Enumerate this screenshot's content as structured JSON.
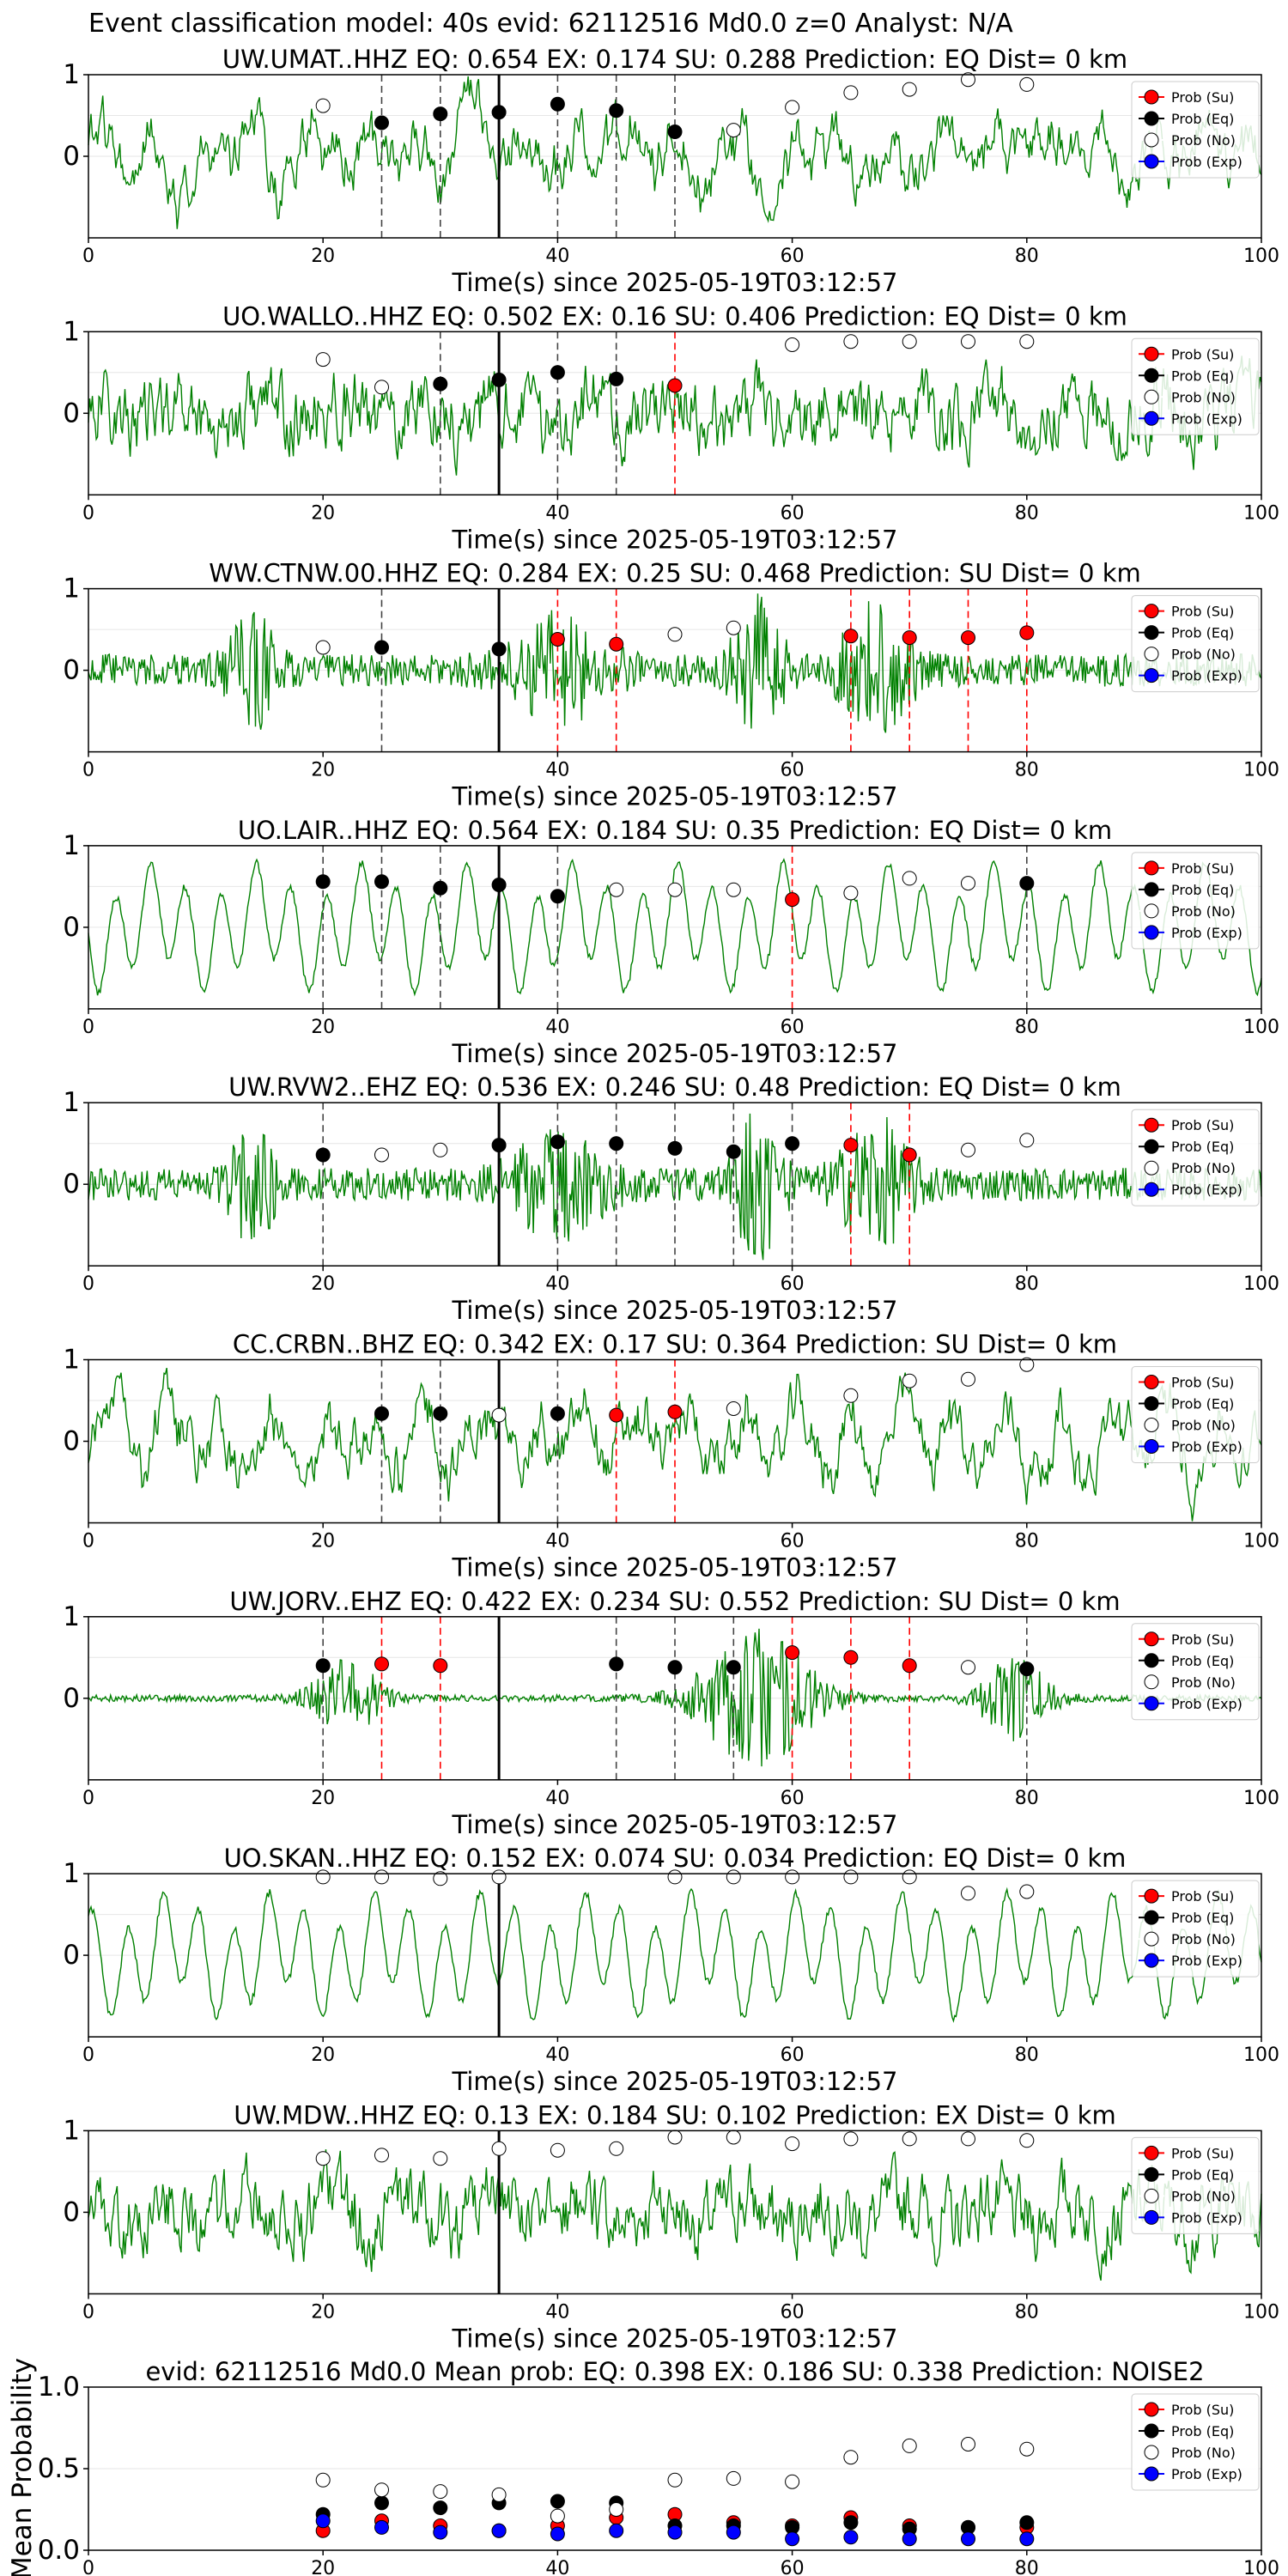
{
  "figure": {
    "title": "Event classification model: 40s evid: 62112516 Md0.0 z=0 Analyst: N/A"
  },
  "colors": {
    "waveform": "#008000",
    "su": "#ff0000",
    "eq": "#000000",
    "no": "#ffffff",
    "exp": "#0000ff",
    "origin_line": "#000000",
    "eq_line": "#444444",
    "su_line": "#ff0000"
  },
  "legend": [
    "Prob (Su)",
    "Prob (Eq)",
    "Prob (No)",
    "Prob (Exp)"
  ],
  "chart_data": [
    {
      "type": "scatter",
      "station": "UW.UMAT..HHZ",
      "title": "UW.UMAT..HHZ   EQ: 0.654  EX: 0.174  SU: 0.288   Prediction: EQ    Dist= 0 km",
      "xlabel": "Time(s) since 2025-05-19T03:12:57",
      "xlim": [
        0,
        100
      ],
      "ylim": [
        -1,
        1
      ],
      "xticks": [
        "0",
        "20",
        "40",
        "60",
        "80",
        "100"
      ],
      "yticks": [
        "1",
        "0"
      ],
      "waveform_style": "noisy-lowfreq",
      "origin_time": 35,
      "points": [
        {
          "x": 20,
          "y": 0.62,
          "cls": "no"
        },
        {
          "x": 25,
          "y": 0.41,
          "cls": "eq"
        },
        {
          "x": 30,
          "y": 0.52,
          "cls": "eq"
        },
        {
          "x": 35,
          "y": 0.54,
          "cls": "eq"
        },
        {
          "x": 40,
          "y": 0.64,
          "cls": "eq"
        },
        {
          "x": 45,
          "y": 0.56,
          "cls": "eq"
        },
        {
          "x": 50,
          "y": 0.3,
          "cls": "eq"
        },
        {
          "x": 55,
          "y": 0.32,
          "cls": "no"
        },
        {
          "x": 60,
          "y": 0.6,
          "cls": "no"
        },
        {
          "x": 65,
          "y": 0.78,
          "cls": "no"
        },
        {
          "x": 70,
          "y": 0.82,
          "cls": "no"
        },
        {
          "x": 75,
          "y": 0.94,
          "cls": "no"
        },
        {
          "x": 80,
          "y": 0.88,
          "cls": "no"
        }
      ]
    },
    {
      "type": "scatter",
      "station": "UO.WALLO..HHZ",
      "title": "UO.WALLO..HHZ   EQ: 0.502  EX: 0.16  SU: 0.406   Prediction: EQ    Dist= 0 km",
      "xlabel": "Time(s) since 2025-05-19T03:12:57",
      "xlim": [
        0,
        100
      ],
      "ylim": [
        -1,
        1
      ],
      "xticks": [
        "0",
        "20",
        "40",
        "60",
        "80",
        "100"
      ],
      "yticks": [
        "1",
        "0"
      ],
      "waveform_style": "noisy",
      "origin_time": 35,
      "points": [
        {
          "x": 20,
          "y": 0.66,
          "cls": "no"
        },
        {
          "x": 25,
          "y": 0.32,
          "cls": "no"
        },
        {
          "x": 30,
          "y": 0.36,
          "cls": "eq"
        },
        {
          "x": 35,
          "y": 0.41,
          "cls": "eq"
        },
        {
          "x": 40,
          "y": 0.5,
          "cls": "eq"
        },
        {
          "x": 45,
          "y": 0.42,
          "cls": "eq"
        },
        {
          "x": 50,
          "y": 0.34,
          "cls": "su"
        },
        {
          "x": 60,
          "y": 0.84,
          "cls": "no"
        },
        {
          "x": 65,
          "y": 0.88,
          "cls": "no"
        },
        {
          "x": 70,
          "y": 0.88,
          "cls": "no"
        },
        {
          "x": 75,
          "y": 0.88,
          "cls": "no"
        },
        {
          "x": 80,
          "y": 0.88,
          "cls": "no"
        }
      ]
    },
    {
      "type": "scatter",
      "station": "WW.CTNW.00.HHZ",
      "title": "WW.CTNW.00.HHZ   EQ: 0.284  EX: 0.25  SU: 0.468   Prediction: SU    Dist= 0 km",
      "xlabel": "Time(s) since 2025-05-19T03:12:57",
      "xlim": [
        0,
        100
      ],
      "ylim": [
        -1,
        1
      ],
      "xticks": [
        "0",
        "20",
        "40",
        "60",
        "80",
        "100"
      ],
      "yticks": [
        "1",
        "0"
      ],
      "waveform_style": "bursty",
      "origin_time": 35,
      "points": [
        {
          "x": 20,
          "y": 0.28,
          "cls": "no"
        },
        {
          "x": 25,
          "y": 0.28,
          "cls": "eq"
        },
        {
          "x": 35,
          "y": 0.26,
          "cls": "eq"
        },
        {
          "x": 40,
          "y": 0.38,
          "cls": "su"
        },
        {
          "x": 45,
          "y": 0.32,
          "cls": "su"
        },
        {
          "x": 50,
          "y": 0.44,
          "cls": "no"
        },
        {
          "x": 55,
          "y": 0.52,
          "cls": "no"
        },
        {
          "x": 65,
          "y": 0.42,
          "cls": "su"
        },
        {
          "x": 70,
          "y": 0.4,
          "cls": "su"
        },
        {
          "x": 75,
          "y": 0.4,
          "cls": "su"
        },
        {
          "x": 80,
          "y": 0.46,
          "cls": "su"
        }
      ]
    },
    {
      "type": "scatter",
      "station": "UO.LAIR..HHZ",
      "title": "UO.LAIR..HHZ   EQ: 0.564  EX: 0.184  SU: 0.35   Prediction: EQ    Dist= 0 km",
      "xlabel": "Time(s) since 2025-05-19T03:12:57",
      "xlim": [
        0,
        100
      ],
      "ylim": [
        -1,
        1
      ],
      "xticks": [
        "0",
        "20",
        "40",
        "60",
        "80",
        "100"
      ],
      "yticks": [
        "1",
        "0"
      ],
      "waveform_style": "sinusoid",
      "origin_time": 35,
      "points": [
        {
          "x": 20,
          "y": 0.56,
          "cls": "eq"
        },
        {
          "x": 25,
          "y": 0.56,
          "cls": "eq"
        },
        {
          "x": 30,
          "y": 0.48,
          "cls": "eq"
        },
        {
          "x": 35,
          "y": 0.52,
          "cls": "eq"
        },
        {
          "x": 40,
          "y": 0.38,
          "cls": "eq"
        },
        {
          "x": 45,
          "y": 0.46,
          "cls": "no"
        },
        {
          "x": 50,
          "y": 0.46,
          "cls": "no"
        },
        {
          "x": 55,
          "y": 0.46,
          "cls": "no"
        },
        {
          "x": 60,
          "y": 0.34,
          "cls": "su"
        },
        {
          "x": 65,
          "y": 0.42,
          "cls": "no"
        },
        {
          "x": 70,
          "y": 0.6,
          "cls": "no"
        },
        {
          "x": 75,
          "y": 0.54,
          "cls": "no"
        },
        {
          "x": 80,
          "y": 0.54,
          "cls": "eq"
        }
      ]
    },
    {
      "type": "scatter",
      "station": "UW.RVW2..EHZ",
      "title": "UW.RVW2..EHZ   EQ: 0.536  EX: 0.246  SU: 0.48   Prediction: EQ    Dist= 0 km",
      "xlabel": "Time(s) since 2025-05-19T03:12:57",
      "xlim": [
        0,
        100
      ],
      "ylim": [
        -1,
        1
      ],
      "xticks": [
        "0",
        "20",
        "40",
        "60",
        "80",
        "100"
      ],
      "yticks": [
        "1",
        "0"
      ],
      "waveform_style": "bursty",
      "origin_time": 35,
      "points": [
        {
          "x": 20,
          "y": 0.36,
          "cls": "eq"
        },
        {
          "x": 25,
          "y": 0.36,
          "cls": "no"
        },
        {
          "x": 30,
          "y": 0.42,
          "cls": "no"
        },
        {
          "x": 35,
          "y": 0.48,
          "cls": "eq"
        },
        {
          "x": 40,
          "y": 0.52,
          "cls": "eq"
        },
        {
          "x": 45,
          "y": 0.5,
          "cls": "eq"
        },
        {
          "x": 50,
          "y": 0.44,
          "cls": "eq"
        },
        {
          "x": 55,
          "y": 0.4,
          "cls": "eq"
        },
        {
          "x": 60,
          "y": 0.5,
          "cls": "eq"
        },
        {
          "x": 65,
          "y": 0.48,
          "cls": "su"
        },
        {
          "x": 70,
          "y": 0.36,
          "cls": "su"
        },
        {
          "x": 75,
          "y": 0.42,
          "cls": "no"
        },
        {
          "x": 80,
          "y": 0.54,
          "cls": "no"
        }
      ]
    },
    {
      "type": "scatter",
      "station": "CC.CRBN..BHZ",
      "title": "CC.CRBN..BHZ   EQ: 0.342  EX: 0.17  SU: 0.364   Prediction: SU    Dist= 0 km",
      "xlabel": "Time(s) since 2025-05-19T03:12:57",
      "xlim": [
        0,
        100
      ],
      "ylim": [
        -1,
        1
      ],
      "xticks": [
        "0",
        "20",
        "40",
        "60",
        "80",
        "100"
      ],
      "yticks": [
        "1",
        "0"
      ],
      "waveform_style": "noisy-lowfreq",
      "origin_time": 35,
      "points": [
        {
          "x": 25,
          "y": 0.34,
          "cls": "eq"
        },
        {
          "x": 30,
          "y": 0.34,
          "cls": "eq"
        },
        {
          "x": 35,
          "y": 0.32,
          "cls": "no"
        },
        {
          "x": 40,
          "y": 0.34,
          "cls": "eq"
        },
        {
          "x": 45,
          "y": 0.32,
          "cls": "su"
        },
        {
          "x": 50,
          "y": 0.36,
          "cls": "su"
        },
        {
          "x": 55,
          "y": 0.4,
          "cls": "no"
        },
        {
          "x": 65,
          "y": 0.56,
          "cls": "no"
        },
        {
          "x": 70,
          "y": 0.74,
          "cls": "no"
        },
        {
          "x": 75,
          "y": 0.76,
          "cls": "no"
        },
        {
          "x": 80,
          "y": 0.94,
          "cls": "no"
        }
      ]
    },
    {
      "type": "scatter",
      "station": "UW.JORV..EHZ",
      "title": "UW.JORV..EHZ   EQ: 0.422  EX: 0.234  SU: 0.552   Prediction: SU    Dist= 0 km",
      "xlabel": "Time(s) since 2025-05-19T03:12:57",
      "xlim": [
        0,
        100
      ],
      "ylim": [
        -1,
        1
      ],
      "xticks": [
        "0",
        "20",
        "40",
        "60",
        "80",
        "100"
      ],
      "yticks": [
        "1",
        "0"
      ],
      "waveform_style": "quiet-bursts",
      "origin_time": 35,
      "points": [
        {
          "x": 20,
          "y": 0.4,
          "cls": "eq"
        },
        {
          "x": 25,
          "y": 0.42,
          "cls": "su"
        },
        {
          "x": 30,
          "y": 0.4,
          "cls": "su"
        },
        {
          "x": 45,
          "y": 0.42,
          "cls": "eq"
        },
        {
          "x": 50,
          "y": 0.38,
          "cls": "eq"
        },
        {
          "x": 55,
          "y": 0.38,
          "cls": "eq"
        },
        {
          "x": 60,
          "y": 0.56,
          "cls": "su"
        },
        {
          "x": 65,
          "y": 0.5,
          "cls": "su"
        },
        {
          "x": 70,
          "y": 0.4,
          "cls": "su"
        },
        {
          "x": 75,
          "y": 0.38,
          "cls": "no"
        },
        {
          "x": 80,
          "y": 0.36,
          "cls": "eq"
        }
      ]
    },
    {
      "type": "scatter",
      "station": "UO.SKAN..HHZ",
      "title": "UO.SKAN..HHZ   EQ: 0.152  EX: 0.074  SU: 0.034   Prediction: EQ    Dist= 0 km",
      "xlabel": "Time(s) since 2025-05-19T03:12:57",
      "xlim": [
        0,
        100
      ],
      "ylim": [
        -1,
        1
      ],
      "xticks": [
        "0",
        "20",
        "40",
        "60",
        "80",
        "100"
      ],
      "yticks": [
        "1",
        "0"
      ],
      "waveform_style": "sinusoid",
      "origin_time": 35,
      "points": [
        {
          "x": 20,
          "y": 0.96,
          "cls": "no"
        },
        {
          "x": 25,
          "y": 0.96,
          "cls": "no"
        },
        {
          "x": 30,
          "y": 0.94,
          "cls": "no"
        },
        {
          "x": 35,
          "y": 0.96,
          "cls": "no"
        },
        {
          "x": 50,
          "y": 0.96,
          "cls": "no"
        },
        {
          "x": 55,
          "y": 0.96,
          "cls": "no"
        },
        {
          "x": 60,
          "y": 0.96,
          "cls": "no"
        },
        {
          "x": 65,
          "y": 0.96,
          "cls": "no"
        },
        {
          "x": 70,
          "y": 0.96,
          "cls": "no"
        },
        {
          "x": 75,
          "y": 0.76,
          "cls": "no"
        },
        {
          "x": 80,
          "y": 0.78,
          "cls": "no"
        }
      ]
    },
    {
      "type": "scatter",
      "station": "UW.MDW..HHZ",
      "title": "UW.MDW..HHZ   EQ: 0.13  EX: 0.184  SU: 0.102   Prediction: EX    Dist= 0 km",
      "xlabel": "Time(s) since 2025-05-19T03:12:57",
      "xlim": [
        0,
        100
      ],
      "ylim": [
        -1,
        1
      ],
      "xticks": [
        "0",
        "20",
        "40",
        "60",
        "80",
        "100"
      ],
      "yticks": [
        "1",
        "0"
      ],
      "waveform_style": "noisy",
      "origin_time": 35,
      "points": [
        {
          "x": 20,
          "y": 0.66,
          "cls": "no"
        },
        {
          "x": 25,
          "y": 0.7,
          "cls": "no"
        },
        {
          "x": 30,
          "y": 0.66,
          "cls": "no"
        },
        {
          "x": 35,
          "y": 0.78,
          "cls": "no"
        },
        {
          "x": 40,
          "y": 0.76,
          "cls": "no"
        },
        {
          "x": 45,
          "y": 0.78,
          "cls": "no"
        },
        {
          "x": 50,
          "y": 0.92,
          "cls": "no"
        },
        {
          "x": 55,
          "y": 0.92,
          "cls": "no"
        },
        {
          "x": 60,
          "y": 0.84,
          "cls": "no"
        },
        {
          "x": 65,
          "y": 0.9,
          "cls": "no"
        },
        {
          "x": 70,
          "y": 0.9,
          "cls": "no"
        },
        {
          "x": 75,
          "y": 0.9,
          "cls": "no"
        },
        {
          "x": 80,
          "y": 0.88,
          "cls": "no"
        }
      ]
    },
    {
      "type": "scatter",
      "station": "mean",
      "title": "evid: 62112516  Md0.0   Mean prob:    EQ: 0.398  EX: 0.186  SU: 0.338   Prediction: NOISE2",
      "xlabel": "",
      "ylabel": "Mean Probability",
      "xlim": [
        0,
        100
      ],
      "ylim": [
        0,
        1
      ],
      "xticks": [
        "0",
        "20",
        "40",
        "60",
        "80",
        "100"
      ],
      "yticks": [
        "0.0",
        "0.5",
        "1.0"
      ],
      "times": [
        20,
        25,
        30,
        35,
        40,
        45,
        50,
        55,
        60,
        65,
        70,
        75,
        80
      ],
      "series": [
        {
          "name": "Prob (Su)",
          "cls": "su",
          "values": [
            0.12,
            0.18,
            0.15,
            0.12,
            0.15,
            0.2,
            0.22,
            0.17,
            0.15,
            0.2,
            0.15,
            0.14,
            0.14
          ]
        },
        {
          "name": "Prob (Eq)",
          "cls": "eq",
          "values": [
            0.22,
            0.29,
            0.26,
            0.29,
            0.3,
            0.29,
            0.15,
            0.15,
            0.14,
            0.17,
            0.13,
            0.14,
            0.17
          ]
        },
        {
          "name": "Prob (No)",
          "cls": "no",
          "values": [
            0.43,
            0.37,
            0.36,
            0.34,
            0.21,
            0.25,
            0.43,
            0.44,
            0.42,
            0.57,
            0.64,
            0.65,
            0.62
          ]
        },
        {
          "name": "Prob (Exp)",
          "cls": "exp",
          "values": [
            0.18,
            0.14,
            0.11,
            0.12,
            0.1,
            0.12,
            0.11,
            0.11,
            0.07,
            0.08,
            0.07,
            0.07,
            0.07
          ]
        }
      ]
    }
  ]
}
